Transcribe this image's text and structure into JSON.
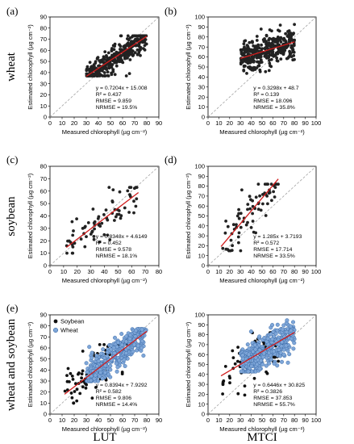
{
  "figure": {
    "rows": [
      "wheat",
      "soybean",
      "wheat and soybean"
    ],
    "columns": [
      "LUT",
      "MTCI"
    ]
  },
  "chart_data": [
    {
      "type": "scatter",
      "panel": "(a)",
      "xlabel": "Measured chlorophyll (µg cm⁻²)",
      "ylabel": "Estimated chlorophyll (µg cm⁻²)",
      "xlim": [
        0,
        90
      ],
      "ylim": [
        0,
        90
      ],
      "xticks": [
        0,
        10,
        20,
        30,
        40,
        50,
        60,
        70,
        80,
        90
      ],
      "yticks": [
        0,
        10,
        20,
        30,
        40,
        50,
        60,
        70,
        80,
        90
      ],
      "fit": {
        "slope": 0.7204,
        "intercept": 15.008
      },
      "stats": [
        "y = 0.7204x + 15.008",
        "R² = 0.437",
        "RMSE = 9.859",
        "NRMSE = 19.5%"
      ],
      "series": [
        {
          "x": [
            30,
            80
          ],
          "y": [
            37,
            73
          ],
          "n": 350,
          "color": "#222222"
        }
      ]
    },
    {
      "type": "scatter",
      "panel": "(b)",
      "xlabel": "Measured chlorophyll (µg cm⁻²)",
      "ylabel": "Estimated chlorophyll (µg cm⁻²)",
      "xlim": [
        0,
        100
      ],
      "ylim": [
        0,
        100
      ],
      "xticks": [
        0,
        10,
        20,
        30,
        40,
        50,
        60,
        70,
        80,
        90,
        100
      ],
      "yticks": [
        0,
        10,
        20,
        30,
        40,
        50,
        60,
        70,
        80,
        90,
        100
      ],
      "fit": {
        "slope": 0.3298,
        "intercept": 48.7
      },
      "stats": [
        "y = 0.3298x + 48.7",
        "R² = 0.139",
        "RMSE = 18.096",
        "NRMSE = 35.8%"
      ],
      "series": [
        {
          "x": [
            30,
            80
          ],
          "y": [
            43,
            95
          ],
          "n": 350,
          "color": "#222222"
        }
      ]
    },
    {
      "type": "scatter",
      "panel": "(c)",
      "xlabel": "Measured chlorophyll (µg cm⁻²)",
      "ylabel": "Estimated chlorophyll (µg cm⁻²)",
      "xlim": [
        0,
        80
      ],
      "ylim": [
        0,
        80
      ],
      "xticks": [
        0,
        10,
        20,
        30,
        40,
        50,
        60,
        70,
        80
      ],
      "yticks": [
        0,
        10,
        20,
        30,
        40,
        50,
        60,
        70,
        80
      ],
      "fit": {
        "slope": 0.8348,
        "intercept": 4.6149
      },
      "stats": [
        "y = 0.8348x + 4.6149",
        "R² = 0.452",
        "RMSE = 9.578",
        "NRMSE = 18.1%"
      ],
      "series": [
        {
          "x": [
            12,
            65
          ],
          "y": [
            10,
            63
          ],
          "n": 75,
          "color": "#222222"
        }
      ]
    },
    {
      "type": "scatter",
      "panel": "(d)",
      "xlabel": "Measured chlorophyll (µg cm⁻²)",
      "ylabel": "Estimated chlorophyll (µg cm⁻²)",
      "xlim": [
        0,
        100
      ],
      "ylim": [
        0,
        100
      ],
      "xticks": [
        0,
        10,
        20,
        30,
        40,
        50,
        60,
        70,
        80,
        90,
        100
      ],
      "yticks": [
        0,
        10,
        20,
        30,
        40,
        50,
        60,
        70,
        80,
        90,
        100
      ],
      "fit": {
        "slope": 1.285,
        "intercept": 3.7193
      },
      "stats": [
        "y = 1.285x + 3.7193",
        "R² = 0.572",
        "RMSE = 17.714",
        "NRMSE = 33.5%"
      ],
      "series": [
        {
          "x": [
            12,
            65
          ],
          "y": [
            15,
            82
          ],
          "n": 75,
          "color": "#222222"
        }
      ]
    },
    {
      "type": "scatter",
      "panel": "(e)",
      "xlabel": "Measured chlorophyll (µg cm⁻²)",
      "ylabel": "Estimated chlorophyll (µg cm⁻²)",
      "xlim": [
        0,
        90
      ],
      "ylim": [
        0,
        90
      ],
      "xticks": [
        0,
        10,
        20,
        30,
        40,
        50,
        60,
        70,
        80,
        90
      ],
      "yticks": [
        0,
        10,
        20,
        30,
        40,
        50,
        60,
        70,
        80,
        90
      ],
      "fit": {
        "slope": 0.8394,
        "intercept": 7.9292
      },
      "stats": [
        "y = 0.8394x + 7.9292",
        "R² = 0.582",
        "RMSE = 9.806",
        "NRMSE = 14.4%"
      ],
      "legend": {
        "position": "top-left"
      },
      "series": [
        {
          "name": "Soybean",
          "x": [
            12,
            65
          ],
          "y": [
            10,
            63
          ],
          "n": 75,
          "color": "#111111"
        },
        {
          "name": "Wheat",
          "x": [
            30,
            80
          ],
          "y": [
            30,
            77
          ],
          "n": 350,
          "color": "#7ea6d8"
        }
      ]
    },
    {
      "type": "scatter",
      "panel": "(f)",
      "xlabel": "Measured chlorophyll (µg cm⁻²)",
      "ylabel": "Estimated chlorophyll (µg cm⁻²)",
      "xlim": [
        0,
        100
      ],
      "ylim": [
        0,
        100
      ],
      "xticks": [
        0,
        10,
        20,
        30,
        40,
        50,
        60,
        70,
        80,
        90,
        100
      ],
      "yticks": [
        0,
        10,
        20,
        30,
        40,
        50,
        60,
        70,
        80,
        90,
        100
      ],
      "fit": {
        "slope": 0.6446,
        "intercept": 30.825
      },
      "stats": [
        "y = 0.6446x + 30.825",
        "R² = 0.3826",
        "RMSE = 37.853",
        "NRMSE = 55.7%"
      ],
      "series": [
        {
          "x": [
            12,
            65
          ],
          "y": [
            15,
            82
          ],
          "n": 75,
          "color": "#111111"
        },
        {
          "x": [
            30,
            80
          ],
          "y": [
            43,
            95
          ],
          "n": 350,
          "color": "#7ea6d8"
        }
      ]
    }
  ]
}
